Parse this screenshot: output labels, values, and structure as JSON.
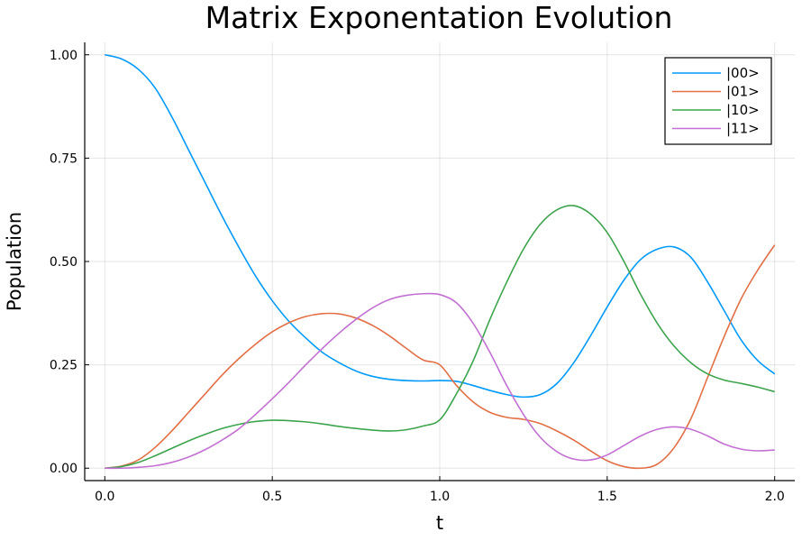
{
  "chart_data": {
    "type": "line",
    "title": "Matrix Exponentation Evolution",
    "xlabel": "t",
    "ylabel": "Population",
    "xlim": [
      -0.06,
      2.06
    ],
    "ylim": [
      -0.03,
      1.03
    ],
    "xticks": [
      0.0,
      0.5,
      1.0,
      1.5,
      2.0
    ],
    "xtick_labels": [
      "0.0",
      "0.5",
      "1.0",
      "1.5",
      "2.0"
    ],
    "yticks": [
      0.0,
      0.25,
      0.5,
      0.75,
      1.0
    ],
    "ytick_labels": [
      "0.00",
      "0.25",
      "0.50",
      "0.75",
      "1.00"
    ],
    "grid": true,
    "legend_position": "top-right",
    "series": [
      {
        "name": "|00>",
        "color": "#009AFA",
        "x": [
          0.0,
          0.05,
          0.1,
          0.15,
          0.2,
          0.25,
          0.3,
          0.35,
          0.4,
          0.45,
          0.5,
          0.55,
          0.6,
          0.65,
          0.7,
          0.75,
          0.8,
          0.85,
          0.9,
          0.95,
          1.0,
          1.05,
          1.1,
          1.15,
          1.2,
          1.25,
          1.3,
          1.35,
          1.4,
          1.45,
          1.5,
          1.55,
          1.6,
          1.65,
          1.7,
          1.75,
          1.8,
          1.85,
          1.9,
          1.95,
          2.0
        ],
        "y": [
          1.0,
          0.99,
          0.965,
          0.92,
          0.85,
          0.77,
          0.69,
          0.61,
          0.535,
          0.465,
          0.405,
          0.355,
          0.315,
          0.28,
          0.255,
          0.235,
          0.222,
          0.215,
          0.212,
          0.211,
          0.212,
          0.21,
          0.2,
          0.188,
          0.178,
          0.172,
          0.178,
          0.205,
          0.255,
          0.32,
          0.39,
          0.455,
          0.505,
          0.53,
          0.535,
          0.51,
          0.45,
          0.38,
          0.31,
          0.26,
          0.228
        ]
      },
      {
        "name": "|01>",
        "color": "#E26F46",
        "x": [
          0.0,
          0.05,
          0.1,
          0.15,
          0.2,
          0.25,
          0.3,
          0.35,
          0.4,
          0.45,
          0.5,
          0.55,
          0.6,
          0.65,
          0.7,
          0.75,
          0.8,
          0.85,
          0.9,
          0.95,
          1.0,
          1.05,
          1.1,
          1.15,
          1.2,
          1.25,
          1.3,
          1.35,
          1.4,
          1.45,
          1.5,
          1.55,
          1.6,
          1.65,
          1.7,
          1.75,
          1.8,
          1.85,
          1.9,
          1.95,
          2.0
        ],
        "y": [
          0.0,
          0.005,
          0.02,
          0.05,
          0.09,
          0.135,
          0.18,
          0.225,
          0.265,
          0.3,
          0.33,
          0.352,
          0.367,
          0.374,
          0.373,
          0.363,
          0.345,
          0.32,
          0.29,
          0.262,
          0.25,
          0.2,
          0.16,
          0.135,
          0.123,
          0.118,
          0.108,
          0.09,
          0.068,
          0.042,
          0.018,
          0.004,
          0.0,
          0.01,
          0.05,
          0.12,
          0.22,
          0.32,
          0.41,
          0.48,
          0.54
        ]
      },
      {
        "name": "|10>",
        "color": "#3DA44D",
        "x": [
          0.0,
          0.05,
          0.1,
          0.15,
          0.2,
          0.25,
          0.3,
          0.35,
          0.4,
          0.45,
          0.5,
          0.55,
          0.6,
          0.65,
          0.7,
          0.75,
          0.8,
          0.85,
          0.9,
          0.95,
          1.0,
          1.05,
          1.1,
          1.15,
          1.2,
          1.25,
          1.3,
          1.35,
          1.4,
          1.45,
          1.5,
          1.55,
          1.6,
          1.65,
          1.7,
          1.75,
          1.8,
          1.85,
          1.9,
          1.95,
          2.0
        ],
        "y": [
          0.0,
          0.004,
          0.014,
          0.03,
          0.048,
          0.066,
          0.082,
          0.096,
          0.106,
          0.113,
          0.116,
          0.115,
          0.112,
          0.107,
          0.101,
          0.096,
          0.092,
          0.09,
          0.093,
          0.102,
          0.117,
          0.18,
          0.26,
          0.36,
          0.45,
          0.53,
          0.59,
          0.625,
          0.635,
          0.615,
          0.57,
          0.5,
          0.42,
          0.35,
          0.295,
          0.255,
          0.228,
          0.213,
          0.205,
          0.196,
          0.185
        ]
      },
      {
        "name": "|11>",
        "color": "#C271D2",
        "x": [
          0.0,
          0.05,
          0.1,
          0.15,
          0.2,
          0.25,
          0.3,
          0.35,
          0.4,
          0.45,
          0.5,
          0.55,
          0.6,
          0.65,
          0.7,
          0.75,
          0.8,
          0.85,
          0.9,
          0.95,
          1.0,
          1.05,
          1.1,
          1.15,
          1.2,
          1.25,
          1.3,
          1.35,
          1.4,
          1.45,
          1.5,
          1.55,
          1.6,
          1.65,
          1.7,
          1.75,
          1.8,
          1.85,
          1.9,
          1.95,
          2.0
        ],
        "y": [
          0.0,
          0.0,
          0.002,
          0.006,
          0.014,
          0.027,
          0.045,
          0.068,
          0.095,
          0.13,
          0.168,
          0.208,
          0.25,
          0.29,
          0.327,
          0.36,
          0.388,
          0.408,
          0.418,
          0.422,
          0.42,
          0.4,
          0.35,
          0.28,
          0.2,
          0.13,
          0.075,
          0.04,
          0.022,
          0.02,
          0.032,
          0.055,
          0.078,
          0.094,
          0.1,
          0.094,
          0.078,
          0.058,
          0.046,
          0.042,
          0.044
        ]
      }
    ]
  }
}
